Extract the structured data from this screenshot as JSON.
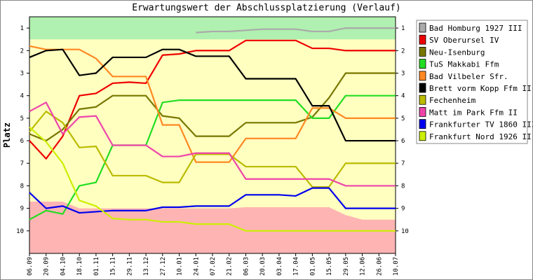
{
  "chart_data": {
    "type": "line",
    "title": "Erwartungswert der Abschlussplatzierung (Verlauf)",
    "ylabel": "Platz",
    "ylim": [
      1,
      10
    ],
    "y_inverted": true,
    "y_ticks": [
      "1",
      "2",
      "3",
      "4",
      "5",
      "6",
      "7",
      "8",
      "9",
      "10"
    ],
    "x": [
      "06.09",
      "20.09",
      "04.10",
      "18.10",
      "01.11",
      "15.11",
      "29.11",
      "13.12",
      "27.12",
      "10.01",
      "24.01",
      "07.02",
      "21.02",
      "06.03",
      "20.03",
      "03.04",
      "17.04",
      "01.05",
      "15.05",
      "29.05",
      "12.06",
      "26.06",
      "10.07"
    ],
    "bands": {
      "promotion": {
        "color": "#b0f0b0",
        "top": 1,
        "bottom": [
          1.5,
          1.5,
          1.5,
          1.5,
          1.5,
          1.5,
          1.5,
          1.5,
          1.5,
          1.5,
          1.5,
          1.5,
          1.5,
          1.5,
          1.5,
          1.5,
          1.5,
          1.5,
          1.5,
          1.5,
          1.5,
          1.5,
          1.5
        ]
      },
      "relegation": {
        "color": "#ffb4b4",
        "bottom": 10,
        "top": [
          8.7,
          8.7,
          8.7,
          9.0,
          9.0,
          9.0,
          9.0,
          9.0,
          9.0,
          9.0,
          9.0,
          9.0,
          9.0,
          8.95,
          8.95,
          8.95,
          8.95,
          8.95,
          8.95,
          9.3,
          9.5,
          9.5,
          9.5
        ]
      },
      "middle_color": "#ffffc0"
    },
    "series": [
      {
        "name": "Bad Homburg 1927 III",
        "color": "#aaaaaa",
        "values": [
          null,
          null,
          null,
          null,
          null,
          null,
          null,
          null,
          null,
          null,
          1.2,
          1.15,
          1.15,
          1.1,
          1.05,
          1.05,
          1.05,
          1.15,
          1.15,
          1.0,
          1.0,
          1.0,
          1.0
        ]
      },
      {
        "name": "SV Oberursel IV",
        "color": "#ee0000",
        "values": [
          6.0,
          6.8,
          5.8,
          4.0,
          3.9,
          3.45,
          3.4,
          3.45,
          2.2,
          2.15,
          2.0,
          2.0,
          2.0,
          1.55,
          1.55,
          1.55,
          1.55,
          1.9,
          1.9,
          2.0,
          2.0,
          2.0,
          2.0
        ]
      },
      {
        "name": "Neu-Isenburg",
        "color": "#777700",
        "values": [
          5.7,
          6.0,
          5.5,
          4.6,
          4.5,
          4.0,
          4.0,
          4.0,
          4.9,
          5.0,
          5.8,
          5.8,
          5.8,
          5.2,
          5.2,
          5.2,
          5.2,
          4.95,
          4.1,
          3.0,
          3.0,
          3.0,
          3.0
        ]
      },
      {
        "name": "TuS Makkabi Ffm",
        "color": "#22dd22",
        "values": [
          9.5,
          9.1,
          9.25,
          8.0,
          7.85,
          6.2,
          6.2,
          6.2,
          4.3,
          4.2,
          4.2,
          4.2,
          4.2,
          4.2,
          4.2,
          4.2,
          4.2,
          5.0,
          5.0,
          4.0,
          4.0,
          4.0,
          4.0
        ]
      },
      {
        "name": "Bad Vilbeler Sfr.",
        "color": "#ff8822",
        "values": [
          1.8,
          1.95,
          1.95,
          1.95,
          2.35,
          3.15,
          3.15,
          3.15,
          5.3,
          5.3,
          6.95,
          6.95,
          6.95,
          5.9,
          5.9,
          5.9,
          5.9,
          4.55,
          4.55,
          5.0,
          5.0,
          5.0,
          5.0
        ]
      },
      {
        "name": "Brett vorm Kopp Ffm II",
        "color": "#000000",
        "values": [
          2.3,
          2.0,
          1.95,
          3.1,
          3.0,
          2.3,
          2.3,
          2.3,
          1.95,
          1.95,
          2.25,
          2.25,
          2.25,
          3.25,
          3.25,
          3.25,
          3.25,
          4.45,
          4.45,
          6.0,
          6.0,
          6.0,
          6.0
        ]
      },
      {
        "name": "Fechenheim",
        "color": "#bbbb00",
        "values": [
          5.6,
          4.7,
          5.2,
          6.3,
          6.25,
          7.55,
          7.55,
          7.55,
          7.85,
          7.85,
          6.6,
          6.6,
          6.6,
          7.15,
          7.15,
          7.15,
          7.15,
          8.05,
          8.05,
          7.0,
          7.0,
          7.0,
          7.0
        ]
      },
      {
        "name": "Matt im Park Ffm II",
        "color": "#ee44aa",
        "values": [
          4.7,
          4.3,
          5.7,
          4.95,
          4.9,
          6.2,
          6.2,
          6.2,
          6.7,
          6.7,
          6.55,
          6.55,
          6.55,
          7.7,
          7.7,
          7.7,
          7.7,
          7.7,
          7.7,
          8.0,
          8.0,
          8.0,
          8.0
        ]
      },
      {
        "name": "Frankfurter TV 1860 III",
        "color": "#0000ee",
        "values": [
          8.3,
          9.0,
          8.9,
          9.2,
          9.15,
          9.1,
          9.1,
          9.1,
          8.95,
          8.95,
          8.9,
          8.9,
          8.9,
          8.4,
          8.4,
          8.4,
          8.45,
          8.1,
          8.1,
          9.0,
          9.0,
          9.0,
          9.0
        ]
      },
      {
        "name": "Frankfurt Nord 1926 II",
        "color": "#ccee00",
        "values": [
          5.4,
          6.05,
          7.0,
          8.65,
          8.9,
          9.45,
          9.5,
          9.5,
          9.6,
          9.6,
          9.7,
          9.7,
          9.7,
          10.0,
          10.0,
          10.0,
          10.0,
          10.0,
          10.0,
          10.0,
          10.0,
          10.0,
          10.0
        ]
      }
    ],
    "legend": "right",
    "grid": false
  }
}
